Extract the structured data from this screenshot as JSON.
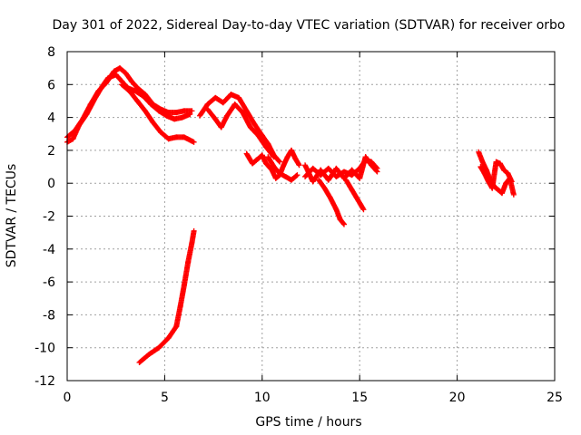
{
  "chart_data": {
    "type": "scatter",
    "title": "Day 301 of 2022, Sidereal Day-to-day VTEC variation (SDTVAR) for receiver orbo",
    "xlabel": "GPS time / hours",
    "ylabel": "SDTVAR / TECUs",
    "xlim": [
      0,
      25
    ],
    "ylim": [
      -12,
      8
    ],
    "xticks": [
      "0",
      "5",
      "10",
      "15",
      "20",
      "25"
    ],
    "yticks": [
      "8",
      "6",
      "4",
      "2",
      "0",
      "-2",
      "-4",
      "-6",
      "-8",
      "-10",
      "-12"
    ],
    "grid": true,
    "marker": "plus",
    "series": [
      {
        "name": "SDTVAR",
        "color": "#ff0000",
        "arcs": [
          [
            [
              0.0,
              2.5
            ],
            [
              0.3,
              2.7
            ],
            [
              0.6,
              3.5
            ],
            [
              1.0,
              4.2
            ],
            [
              1.4,
              5.1
            ],
            [
              1.8,
              5.9
            ],
            [
              2.1,
              6.4
            ],
            [
              2.5,
              6.6
            ],
            [
              2.8,
              6.2
            ],
            [
              3.1,
              5.8
            ],
            [
              3.5,
              5.6
            ],
            [
              3.9,
              5.3
            ],
            [
              4.3,
              4.8
            ],
            [
              4.7,
              4.4
            ],
            [
              5.1,
              4.1
            ],
            [
              5.5,
              3.9
            ],
            [
              5.9,
              4.0
            ],
            [
              6.3,
              4.2
            ]
          ],
          [
            [
              0.0,
              2.8
            ],
            [
              0.4,
              3.2
            ],
            [
              0.8,
              3.9
            ],
            [
              1.2,
              4.8
            ],
            [
              1.6,
              5.6
            ],
            [
              2.0,
              6.1
            ],
            [
              2.4,
              6.8
            ],
            [
              2.7,
              7.0
            ],
            [
              3.0,
              6.7
            ],
            [
              3.3,
              6.2
            ],
            [
              3.6,
              5.8
            ],
            [
              4.0,
              5.4
            ],
            [
              4.4,
              4.8
            ],
            [
              4.8,
              4.5
            ],
            [
              5.2,
              4.3
            ],
            [
              5.6,
              4.3
            ],
            [
              6.0,
              4.4
            ],
            [
              6.4,
              4.4
            ]
          ],
          [
            [
              2.8,
              6.0
            ],
            [
              3.2,
              5.6
            ],
            [
              3.6,
              5.0
            ],
            [
              4.0,
              4.4
            ],
            [
              4.4,
              3.7
            ],
            [
              4.8,
              3.1
            ],
            [
              5.2,
              2.7
            ],
            [
              5.6,
              2.8
            ],
            [
              6.0,
              2.8
            ],
            [
              6.5,
              2.5
            ]
          ],
          [
            [
              3.7,
              -10.9
            ],
            [
              4.2,
              -10.4
            ],
            [
              4.7,
              -10.0
            ],
            [
              5.2,
              -9.4
            ],
            [
              5.6,
              -8.7
            ],
            [
              5.8,
              -7.5
            ],
            [
              6.0,
              -6.2
            ],
            [
              6.2,
              -4.8
            ],
            [
              6.4,
              -3.6
            ],
            [
              6.5,
              -2.9
            ]
          ],
          [
            [
              6.8,
              4.1
            ],
            [
              7.2,
              4.8
            ],
            [
              7.6,
              5.2
            ],
            [
              8.0,
              4.9
            ],
            [
              8.4,
              5.4
            ],
            [
              8.8,
              5.2
            ],
            [
              9.2,
              4.4
            ],
            [
              9.6,
              3.6
            ],
            [
              10.0,
              2.9
            ],
            [
              10.3,
              2.4
            ],
            [
              10.6,
              1.7
            ],
            [
              10.9,
              1.3
            ]
          ],
          [
            [
              7.2,
              4.5
            ],
            [
              7.6,
              3.9
            ],
            [
              7.9,
              3.4
            ],
            [
              8.2,
              4.1
            ],
            [
              8.6,
              4.8
            ],
            [
              9.0,
              4.3
            ],
            [
              9.4,
              3.4
            ],
            [
              9.8,
              2.9
            ],
            [
              10.2,
              2.2
            ],
            [
              10.6,
              1.6
            ]
          ],
          [
            [
              9.2,
              1.8
            ],
            [
              9.5,
              1.2
            ],
            [
              9.7,
              1.4
            ],
            [
              10.0,
              1.7
            ],
            [
              10.2,
              1.2
            ],
            [
              10.5,
              0.8
            ],
            [
              10.7,
              0.3
            ],
            [
              10.9,
              0.5
            ],
            [
              11.1,
              1.1
            ],
            [
              11.3,
              1.6
            ],
            [
              11.5,
              2.0
            ],
            [
              11.7,
              1.5
            ],
            [
              11.9,
              1.1
            ]
          ],
          [
            [
              10.3,
              1.6
            ],
            [
              10.6,
              1.0
            ],
            [
              10.9,
              0.6
            ],
            [
              11.2,
              0.4
            ],
            [
              11.5,
              0.2
            ],
            [
              11.8,
              0.5
            ]
          ],
          [
            [
              12.2,
              0.4
            ],
            [
              12.6,
              0.9
            ],
            [
              13.0,
              0.5
            ],
            [
              13.4,
              0.9
            ],
            [
              13.8,
              0.4
            ],
            [
              14.2,
              0.7
            ],
            [
              14.6,
              0.5
            ],
            [
              15.0,
              0.9
            ],
            [
              15.3,
              1.4
            ],
            [
              15.6,
              1.3
            ],
            [
              15.9,
              0.9
            ]
          ],
          [
            [
              12.2,
              1.1
            ],
            [
              12.6,
              0.1
            ],
            [
              13.0,
              0.8
            ],
            [
              13.4,
              0.2
            ],
            [
              13.8,
              0.9
            ],
            [
              14.2,
              0.3
            ],
            [
              14.6,
              0.8
            ],
            [
              15.0,
              0.3
            ],
            [
              15.3,
              1.6
            ],
            [
              15.6,
              1.1
            ],
            [
              15.9,
              0.7
            ]
          ],
          [
            [
              12.9,
              0.2
            ],
            [
              13.2,
              -0.3
            ],
            [
              13.5,
              -0.9
            ],
            [
              13.8,
              -1.6
            ],
            [
              14.0,
              -2.2
            ],
            [
              14.2,
              -2.5
            ]
          ],
          [
            [
              14.3,
              0.2
            ],
            [
              14.6,
              -0.4
            ],
            [
              14.9,
              -1.0
            ],
            [
              15.2,
              -1.6
            ]
          ],
          [
            [
              21.1,
              1.9
            ],
            [
              21.3,
              1.3
            ],
            [
              21.5,
              0.8
            ],
            [
              21.7,
              0.2
            ],
            [
              21.9,
              -0.2
            ],
            [
              22.1,
              -0.4
            ],
            [
              22.3,
              -0.6
            ],
            [
              22.5,
              0.0
            ],
            [
              22.7,
              0.3
            ],
            [
              22.9,
              -0.7
            ]
          ],
          [
            [
              21.2,
              1.0
            ],
            [
              21.4,
              0.6
            ],
            [
              21.6,
              0.1
            ],
            [
              21.8,
              -0.3
            ],
            [
              22.0,
              1.3
            ],
            [
              22.2,
              1.2
            ],
            [
              22.4,
              0.8
            ],
            [
              22.6,
              0.6
            ],
            [
              22.8,
              0.1
            ]
          ]
        ]
      }
    ]
  }
}
